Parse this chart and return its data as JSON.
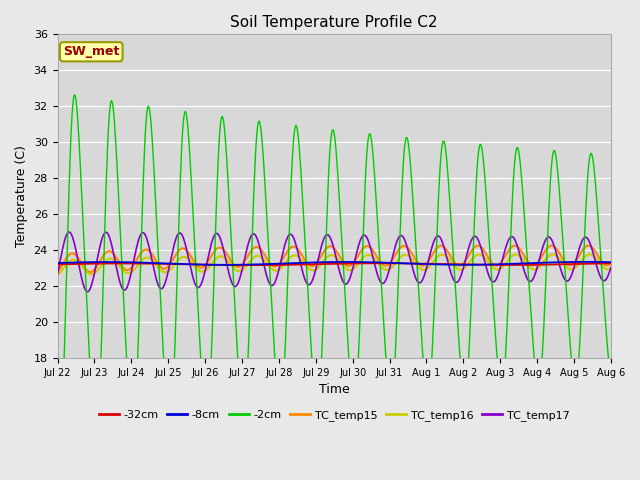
{
  "title": "Soil Temperature Profile C2",
  "xlabel": "Time",
  "ylabel": "Temperature (C)",
  "ylim": [
    18,
    36
  ],
  "yticks": [
    18,
    20,
    22,
    24,
    26,
    28,
    30,
    32,
    34,
    36
  ],
  "x_labels": [
    "Jul 22",
    "Jul 23",
    "Jul 24",
    "Jul 25",
    "Jul 26",
    "Jul 27",
    "Jul 28",
    "Jul 29",
    "Jul 30",
    "Jul 31",
    "Aug 1",
    "Aug 2",
    "Aug 3",
    "Aug 4",
    "Aug 5",
    "Aug 6"
  ],
  "fig_bg_color": "#e8e8e8",
  "plot_bg_color": "#d8d8d8",
  "grid_color": "#ffffff",
  "line_colors": {
    "neg32cm": "#dd0000",
    "neg8cm": "#0000dd",
    "neg2cm": "#00cc00",
    "TC_temp15": "#ff8800",
    "TC_temp16": "#cccc00",
    "TC_temp17": "#8800cc"
  },
  "annotation": {
    "text": "SW_met",
    "facecolor": "#ffffaa",
    "edgecolor": "#999900",
    "textcolor": "#990000",
    "fontsize": 9,
    "fontweight": "bold"
  },
  "legend_labels": [
    "-32cm",
    "-8cm",
    "-2cm",
    "TC_temp15",
    "TC_temp16",
    "TC_temp17"
  ]
}
